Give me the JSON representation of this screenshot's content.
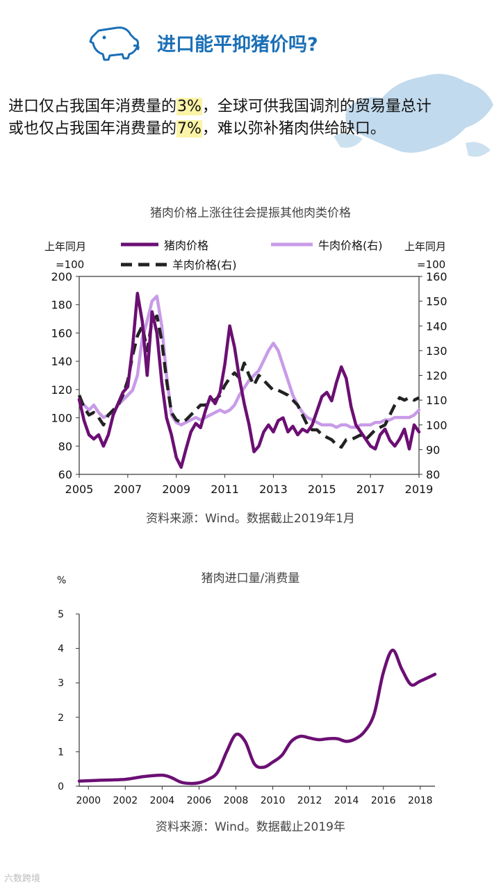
{
  "header": {
    "title": "进口能平抑猪价吗?",
    "icon": "pig-icon",
    "accent_color": "#1a6fb6"
  },
  "intro": {
    "line1_a": "进口仅占我国年消费量的",
    "line1_hl": "3%",
    "line1_b": "，全球可供我国调剂的贸易量总计",
    "line2_a": "或也仅占我国年消费量的",
    "line2_hl": "7%",
    "line2_b": "，难以弥补猪肉供给缺口。",
    "highlight_color": "#fbf3a6"
  },
  "chart_data": [
    {
      "type": "line",
      "title": "猪肉价格上涨往往会提振其他肉类价格",
      "ylabel_left": [
        "上年同月",
        "=100"
      ],
      "ylabel_right": [
        "上年同月",
        "=100"
      ],
      "xlim": [
        2005,
        2019
      ],
      "ylim_left": [
        60,
        200
      ],
      "ylim_right": [
        80,
        160
      ],
      "x_ticks": [
        "2005",
        "2007",
        "2009",
        "2011",
        "2013",
        "2015",
        "2017",
        "2019"
      ],
      "y_ticks_left": [
        "60",
        "80",
        "100",
        "120",
        "140",
        "160",
        "180",
        "200"
      ],
      "y_ticks_right": [
        "80",
        "90",
        "100",
        "110",
        "120",
        "130",
        "140",
        "150",
        "160"
      ],
      "series": [
        {
          "name": "猪肉价格",
          "axis": "left",
          "color": "#6b0f73",
          "dash": "solid",
          "x": [
            2005.0,
            2005.2,
            2005.4,
            2005.6,
            2005.8,
            2006.0,
            2006.2,
            2006.4,
            2006.6,
            2006.8,
            2007.0,
            2007.2,
            2007.4,
            2007.6,
            2007.8,
            2008.0,
            2008.2,
            2008.4,
            2008.6,
            2008.8,
            2009.0,
            2009.2,
            2009.4,
            2009.6,
            2009.8,
            2010.0,
            2010.2,
            2010.4,
            2010.6,
            2010.8,
            2011.0,
            2011.2,
            2011.4,
            2011.6,
            2011.8,
            2012.0,
            2012.2,
            2012.4,
            2012.6,
            2012.8,
            2013.0,
            2013.2,
            2013.4,
            2013.6,
            2013.8,
            2014.0,
            2014.2,
            2014.4,
            2014.6,
            2014.8,
            2015.0,
            2015.2,
            2015.4,
            2015.6,
            2015.8,
            2016.0,
            2016.2,
            2016.4,
            2016.6,
            2016.8,
            2017.0,
            2017.2,
            2017.4,
            2017.6,
            2017.8,
            2018.0,
            2018.2,
            2018.4,
            2018.6,
            2018.8,
            2019.0
          ],
          "values": [
            113,
            98,
            88,
            85,
            88,
            80,
            88,
            102,
            110,
            118,
            122,
            150,
            188,
            168,
            130,
            175,
            160,
            125,
            100,
            88,
            72,
            65,
            78,
            90,
            96,
            93,
            105,
            115,
            110,
            118,
            138,
            165,
            150,
            128,
            110,
            95,
            76,
            80,
            90,
            95,
            90,
            98,
            100,
            90,
            94,
            88,
            92,
            90,
            95,
            105,
            115,
            118,
            112,
            125,
            136,
            128,
            108,
            95,
            90,
            85,
            80,
            78,
            88,
            92,
            84,
            80,
            85,
            92,
            78,
            95,
            90
          ]
        },
        {
          "name": "牛肉价格(右)",
          "axis": "right",
          "color": "#c89be8",
          "dash": "solid",
          "x": [
            2005.0,
            2005.2,
            2005.4,
            2005.6,
            2005.8,
            2006.0,
            2006.2,
            2006.4,
            2006.6,
            2006.8,
            2007.0,
            2007.2,
            2007.4,
            2007.6,
            2007.8,
            2008.0,
            2008.2,
            2008.4,
            2008.6,
            2008.8,
            2009.0,
            2009.2,
            2009.4,
            2009.6,
            2009.8,
            2010.0,
            2010.2,
            2010.4,
            2010.6,
            2010.8,
            2011.0,
            2011.2,
            2011.4,
            2011.6,
            2011.8,
            2012.0,
            2012.2,
            2012.4,
            2012.6,
            2012.8,
            2013.0,
            2013.2,
            2013.4,
            2013.6,
            2013.8,
            2014.0,
            2014.2,
            2014.4,
            2014.6,
            2014.8,
            2015.0,
            2015.2,
            2015.4,
            2015.6,
            2015.8,
            2016.0,
            2016.2,
            2016.4,
            2016.6,
            2016.8,
            2017.0,
            2017.2,
            2017.4,
            2017.6,
            2017.8,
            2018.0,
            2018.2,
            2018.4,
            2018.6,
            2018.8,
            2019.0
          ],
          "values": [
            110,
            108,
            106,
            108,
            105,
            103,
            104,
            105,
            108,
            110,
            112,
            114,
            120,
            135,
            142,
            150,
            152,
            140,
            120,
            104,
            101,
            100,
            101,
            102,
            103,
            102,
            103,
            104,
            105,
            106,
            105,
            106,
            108,
            112,
            115,
            118,
            120,
            122,
            126,
            130,
            133,
            130,
            124,
            118,
            112,
            108,
            105,
            103,
            102,
            101,
            100,
            100,
            100,
            99,
            100,
            100,
            99,
            99,
            100,
            100,
            100,
            101,
            101,
            102,
            102,
            103,
            103,
            103,
            103,
            104,
            106
          ]
        },
        {
          "name": "羊肉价格(右)",
          "axis": "right",
          "color": "#222222",
          "dash": "dash",
          "x": [
            2005.0,
            2005.2,
            2005.4,
            2005.6,
            2005.8,
            2006.0,
            2006.2,
            2006.4,
            2006.6,
            2006.8,
            2007.0,
            2007.2,
            2007.4,
            2007.6,
            2007.8,
            2008.0,
            2008.2,
            2008.4,
            2008.6,
            2008.8,
            2009.0,
            2009.2,
            2009.4,
            2009.6,
            2009.8,
            2010.0,
            2010.2,
            2010.4,
            2010.6,
            2010.8,
            2011.0,
            2011.2,
            2011.4,
            2011.6,
            2011.8,
            2012.0,
            2012.2,
            2012.4,
            2012.6,
            2012.8,
            2013.0,
            2013.2,
            2013.4,
            2013.6,
            2013.8,
            2014.0,
            2014.2,
            2014.4,
            2014.6,
            2014.8,
            2015.0,
            2015.2,
            2015.4,
            2015.6,
            2015.8,
            2016.0,
            2016.2,
            2016.4,
            2016.6,
            2016.8,
            2017.0,
            2017.2,
            2017.4,
            2017.6,
            2017.8,
            2018.0,
            2018.2,
            2018.4,
            2018.6,
            2018.8,
            2019.0
          ],
          "values": [
            112,
            107,
            104,
            105,
            103,
            100,
            104,
            106,
            108,
            112,
            118,
            128,
            136,
            140,
            130,
            142,
            144,
            134,
            118,
            105,
            102,
            101,
            102,
            104,
            106,
            108,
            108,
            110,
            110,
            112,
            116,
            119,
            121,
            119,
            125,
            120,
            116,
            120,
            118,
            116,
            114,
            114,
            113,
            112,
            110,
            108,
            104,
            100,
            98,
            98,
            96,
            95,
            94,
            92,
            91,
            94,
            94,
            95,
            96,
            94,
            96,
            98,
            99,
            100,
            104,
            108,
            111,
            110,
            111,
            110,
            111
          ]
        }
      ],
      "source": "资料来源：Wind。数据截止2019年1月"
    },
    {
      "type": "line",
      "title": "猪肉进口量/消费量",
      "ylabel": "%",
      "xlim": [
        1999.5,
        2018.8
      ],
      "ylim": [
        0,
        5
      ],
      "x_ticks": [
        "2000",
        "2002",
        "2004",
        "2006",
        "2008",
        "2010",
        "2012",
        "2014",
        "2016",
        "2018"
      ],
      "y_ticks": [
        "0",
        "1",
        "2",
        "3",
        "4",
        "5"
      ],
      "series": [
        {
          "name": "猪肉进口量/消费量",
          "color": "#6b0f73",
          "x": [
            1999.5,
            2000,
            2001,
            2002,
            2003,
            2004,
            2004.5,
            2005,
            2005.5,
            2006,
            2006.5,
            2007,
            2007.5,
            2008,
            2008.5,
            2009,
            2009.5,
            2010,
            2010.5,
            2011,
            2011.5,
            2012,
            2012.5,
            2013,
            2013.5,
            2014,
            2014.5,
            2015,
            2015.5,
            2016,
            2016.5,
            2017,
            2017.5,
            2018,
            2018.8
          ],
          "values": [
            0.15,
            0.16,
            0.18,
            0.2,
            0.28,
            0.32,
            0.25,
            0.12,
            0.08,
            0.1,
            0.2,
            0.4,
            1.0,
            1.5,
            1.3,
            0.65,
            0.55,
            0.7,
            0.9,
            1.3,
            1.45,
            1.4,
            1.35,
            1.38,
            1.38,
            1.3,
            1.38,
            1.6,
            2.1,
            3.3,
            3.95,
            3.4,
            2.95,
            3.05,
            3.25
          ]
        }
      ],
      "source": "资料来源：Wind。数据截止2019年"
    }
  ],
  "watermark": "六数跨境"
}
